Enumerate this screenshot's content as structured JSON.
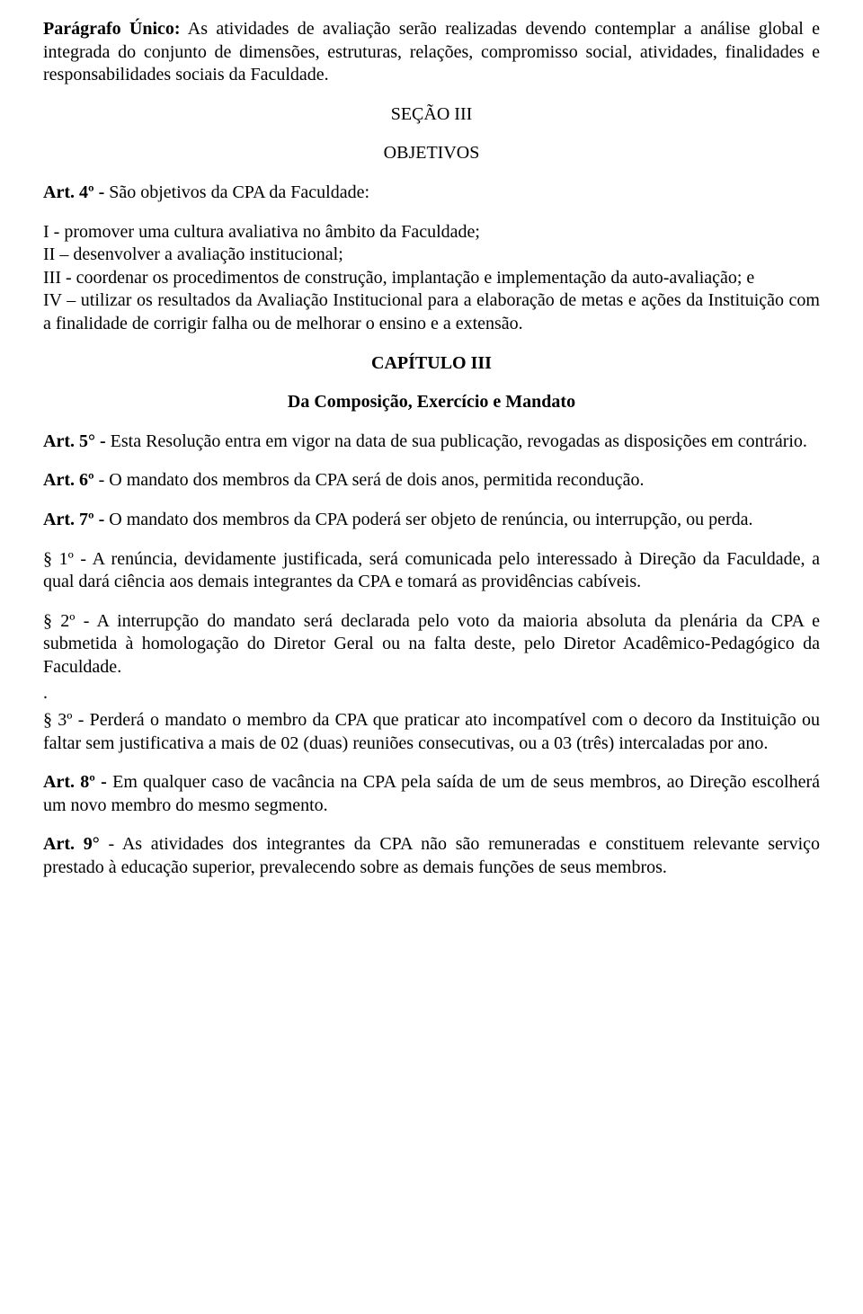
{
  "p1_a": "Parágrafo Único:",
  "p1_b": " As atividades de avaliação serão realizadas devendo contemplar a análise global e integrada do conjunto de dimensões, estruturas, relações, compromisso social, atividades, finalidades e responsabilidades sociais da Faculdade.",
  "sec3_title": "SEÇÃO III",
  "sec3_sub": "OBJETIVOS",
  "art4_a": "Art. 4º -",
  "art4_b": " São objetivos da CPA da Faculdade:",
  "list1_i": "I - promover uma cultura avaliativa no âmbito da Faculdade;",
  "list1_ii": "II – desenvolver a avaliação institucional;",
  "list1_iii": "III - coordenar os procedimentos de construção, implantação e implementação da auto-avaliação; e",
  "list1_iv": "IV – utilizar os resultados da Avaliação Institucional para a elaboração de metas e ações da Instituição com a finalidade de corrigir falha ou de melhorar o ensino e a extensão.",
  "cap3_title": "CAPÍTULO III",
  "cap3_sub": "Da Composição, Exercício e Mandato",
  "art5_a": "Art. 5° -",
  "art5_b": " Esta Resolução entra em vigor na data de sua publicação, revogadas as disposições em contrário.",
  "art6_a": "Art. 6º",
  "art6_b": " - O mandato dos membros da CPA será de dois anos, permitida recondução.",
  "art7_a": "Art. 7º -",
  "art7_b": " O mandato dos membros da CPA poderá ser objeto de renúncia, ou interrupção, ou perda.",
  "s1": "§ 1º - A renúncia, devidamente justificada, será comunicada pelo interessado à Direção da Faculdade, a qual dará ciência aos demais integrantes da CPA e tomará as providências cabíveis.",
  "s2": "§ 2º - A interrupção do mandato será declarada pelo voto da maioria absoluta da plenária da CPA e submetida à homologação do Diretor Geral ou na falta deste, pelo Diretor Acadêmico-Pedagógico da Faculdade.",
  "dot": ".",
  "s3": "§ 3º - Perderá o mandato o membro da CPA que praticar ato incompatível com o decoro da Instituição ou faltar sem justificativa a mais de 02 (duas) reuniões consecutivas, ou a 03 (três) intercaladas por ano.",
  "art8_a": "Art. 8º -",
  "art8_b": " Em qualquer caso de vacância na CPA pela saída de um de seus membros, ao Direção escolherá um novo membro do mesmo segmento.",
  "art9_a": "Art. 9°",
  "art9_b": " - As atividades dos integrantes da CPA não são remuneradas e constituem relevante serviço prestado à educação superior, prevalecendo sobre as demais funções de seus membros."
}
